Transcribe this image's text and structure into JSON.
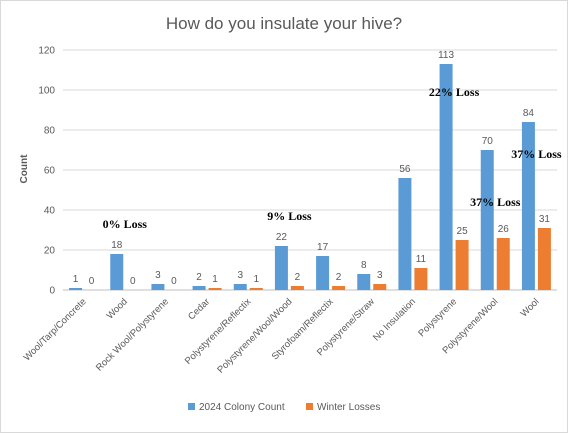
{
  "chart_data": {
    "type": "bar",
    "title": "How do you insulate your hive?",
    "xlabel": "",
    "ylabel": "Count",
    "ylim": [
      0,
      120
    ],
    "yticks": [
      0,
      20,
      40,
      60,
      80,
      100,
      120
    ],
    "grid": true,
    "legend_position": "bottom",
    "categories": [
      "Wool/Tarp/Concrete",
      "Wood",
      "Rock Wool/Polystyrene",
      "Cedar",
      "Polystyrene/Reflectix",
      "Polystyrene/Wool/Wood",
      "Styrofoam/Reflectix",
      "Polystyrene/Straw",
      "No Insulation",
      "Polystyrene",
      "Polystyrene/Wool",
      "Wool"
    ],
    "series": [
      {
        "name": "2024 Colony Count",
        "color": "#5b9bd5",
        "values": [
          1,
          18,
          3,
          2,
          3,
          22,
          17,
          8,
          56,
          113,
          70,
          84
        ]
      },
      {
        "name": "Winter Losses",
        "color": "#ed7d31",
        "values": [
          0,
          0,
          0,
          1,
          1,
          2,
          2,
          3,
          11,
          25,
          26,
          31
        ]
      }
    ],
    "annotations": [
      {
        "text": "0% Loss",
        "category": "Wood",
        "y": 31
      },
      {
        "text": "9% Loss",
        "category": "Polystyrene/Wool/Wood",
        "y": 35
      },
      {
        "text": "22% Loss",
        "category": "Polystyrene",
        "y": 97
      },
      {
        "text": "37% Loss",
        "category": "Polystyrene/Wool",
        "y": 42
      },
      {
        "text": "37% Loss",
        "category": "Wool",
        "y": 66
      }
    ]
  }
}
